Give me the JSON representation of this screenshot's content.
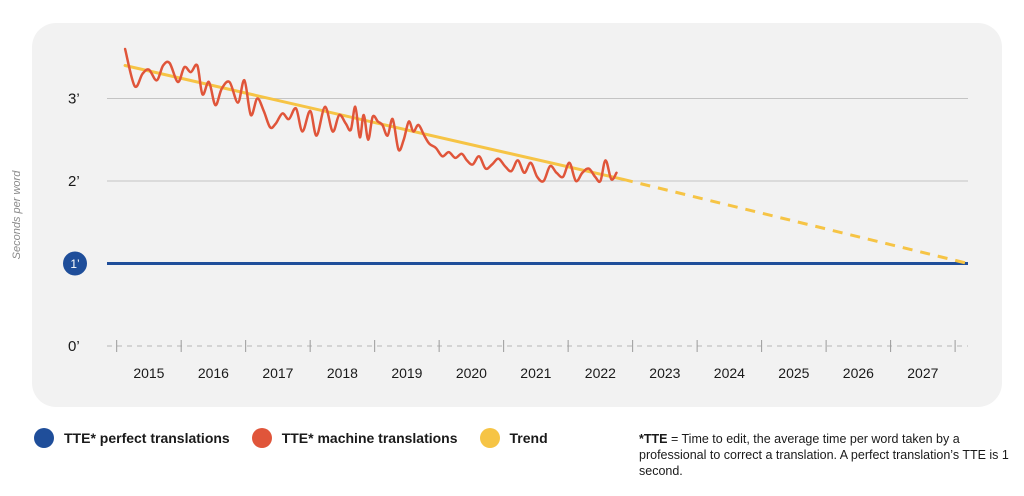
{
  "chart_data": {
    "type": "line",
    "ylabel": "Seconds per word",
    "y_ticks": [
      {
        "value": 0,
        "label": "0’"
      },
      {
        "value": 1,
        "label": "1’"
      },
      {
        "value": 2,
        "label": "2’"
      },
      {
        "value": 3,
        "label": "3’"
      }
    ],
    "ylim": [
      0,
      3.6
    ],
    "xlim": [
      2014.35,
      2027.7
    ],
    "x_ticks": [
      "2015",
      "2016",
      "2017",
      "2018",
      "2019",
      "2020",
      "2021",
      "2022",
      "2023",
      "2024",
      "2025",
      "2026",
      "2027"
    ],
    "grid": true,
    "legend_position": "bottom",
    "series": [
      {
        "name": "TTE* perfect translations",
        "color": "#1f4e9a",
        "x": [
          2014.35,
          2027.7
        ],
        "y": [
          1.0,
          1.0
        ]
      },
      {
        "name": "TTE* machine translations",
        "color": "#e0553a",
        "x": [
          2014.63,
          2014.78,
          2014.9,
          2015.0,
          2015.12,
          2015.22,
          2015.32,
          2015.45,
          2015.55,
          2015.65,
          2015.75,
          2015.83,
          2015.93,
          2016.03,
          2016.13,
          2016.25,
          2016.38,
          2016.48,
          2016.58,
          2016.68,
          2016.78,
          2016.88,
          2016.97,
          2017.07,
          2017.17,
          2017.28,
          2017.38,
          2017.5,
          2017.6,
          2017.73,
          2017.85,
          2017.95,
          2018.05,
          2018.13,
          2018.2,
          2018.27,
          2018.33,
          2018.4,
          2018.47,
          2018.55,
          2018.62,
          2018.7,
          2018.78,
          2018.87,
          2018.95,
          2019.03,
          2019.1,
          2019.18,
          2019.27,
          2019.35,
          2019.45,
          2019.55,
          2019.65,
          2019.75,
          2019.85,
          2019.93,
          2020.02,
          2020.12,
          2020.22,
          2020.32,
          2020.42,
          2020.52,
          2020.62,
          2020.72,
          2020.82,
          2020.92,
          2021.02,
          2021.12,
          2021.22,
          2021.32,
          2021.42,
          2021.52,
          2021.62,
          2021.72,
          2021.82,
          2021.92,
          2022.0,
          2022.08,
          2022.17,
          2022.25
        ],
        "y": [
          3.6,
          3.15,
          3.3,
          3.35,
          3.22,
          3.4,
          3.43,
          3.2,
          3.38,
          3.32,
          3.4,
          3.05,
          3.2,
          2.92,
          3.12,
          3.2,
          2.95,
          3.22,
          2.8,
          3.0,
          2.85,
          2.65,
          2.7,
          2.82,
          2.75,
          2.88,
          2.6,
          2.85,
          2.55,
          2.9,
          2.6,
          2.8,
          2.7,
          2.62,
          2.9,
          2.53,
          2.8,
          2.5,
          2.78,
          2.72,
          2.68,
          2.55,
          2.75,
          2.38,
          2.5,
          2.72,
          2.6,
          2.68,
          2.55,
          2.45,
          2.4,
          2.3,
          2.35,
          2.28,
          2.33,
          2.25,
          2.2,
          2.3,
          2.15,
          2.2,
          2.27,
          2.18,
          2.12,
          2.25,
          2.1,
          2.22,
          2.05,
          2.0,
          2.18,
          2.1,
          2.05,
          2.22,
          2.0,
          2.1,
          2.15,
          2.05,
          2.0,
          2.25,
          2.02,
          2.1
        ]
      },
      {
        "name": "Trend",
        "color": "#f6c445",
        "x": [
          2014.63,
          2022.35,
          2027.7
        ],
        "y": [
          3.4,
          2.02,
          1.0
        ],
        "dashed_from_x": 2022.35
      }
    ]
  },
  "footnote": {
    "term": "*TTE",
    "text": " = Time to edit, the average time per word taken by a professional to correct a translation. A perfect translation’s TTE is 1 second."
  }
}
